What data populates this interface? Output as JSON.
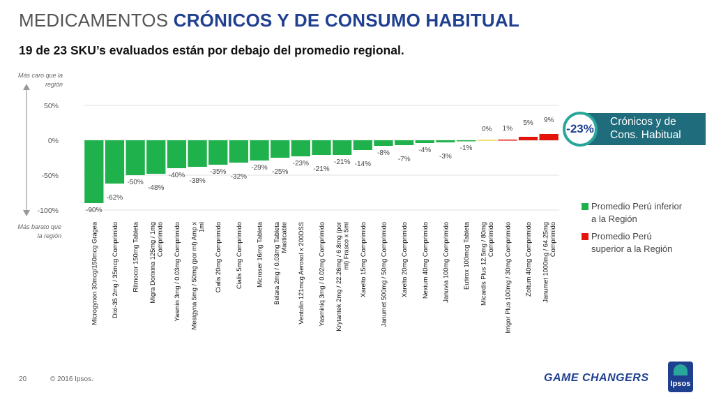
{
  "header": {
    "title_part1": "MEDICAMENTOS",
    "title_part2": "CRÓNICOS Y DE CONSUMO HABITUAL",
    "subtitle": "19 de 23 SKU’s evaluados están por debajo del promedio regional."
  },
  "side_notes": {
    "top": [
      "Más caro que la",
      "región"
    ],
    "bottom": [
      "Más barato que",
      "la región"
    ]
  },
  "callout": {
    "value": "-23%",
    "text_line1": "Crónicos y de",
    "text_line2": "Cons. Habitual"
  },
  "legend": {
    "below": "Promedio Perú inferior a la Región",
    "above": "Promedio Perú superior a la Región"
  },
  "colors": {
    "below": "#1fb14b",
    "above": "#e3150b",
    "accent": "#1f3f8f",
    "callout": "#1f6c7c",
    "ring": "#2aa79b"
  },
  "footer": {
    "page": "20",
    "copyright": "© 2016 Ipsos.",
    "brand": "GAME CHANGERS",
    "logo": "Ipsos"
  },
  "chart_data": {
    "type": "bar",
    "title": "",
    "ylim": [
      -100,
      50
    ],
    "yticks": [
      50,
      0,
      -50,
      -100
    ],
    "ytick_labels": [
      "50%",
      "0%",
      "-50%",
      "-100%"
    ],
    "grid": true,
    "categories": [
      [
        "Microgynon 30mcg/150mcg Gragea"
      ],
      [
        "Dixi-35 2mg / 35mcg Comprimido"
      ],
      [
        "Ritmocor 150mg Tableta"
      ],
      [
        "Migra Dorixina 125mg / 1mg",
        "Comprimido"
      ],
      [
        "Yasmin 3mg / 0.03mg Comprimido"
      ],
      [
        "Mesigyna 5mg / 50mg (por ml) Amp x",
        "1ml"
      ],
      [
        "Cialis 20mg Comprimido"
      ],
      [
        "Cialis 5mg Comprimido"
      ],
      [
        "Microser 16mg Tableta"
      ],
      [
        "Belara 2mg / 0.03mg Tableta",
        "Masticable"
      ],
      [
        "Ventolin 121mcg Aerosol x 200DSS"
      ],
      [
        "Yasminiq 3mg / 0.02mg Comprimido"
      ],
      [
        "Krytantek 2mg / 22.26mg / 6.8mg (por",
        "ml) Frasco x 5ml"
      ],
      [
        "Xarelto 15mg Comprimido"
      ],
      [
        "Janumet 500mg / 50mg Comprimido"
      ],
      [
        "Xarelto 20mg Comprimido"
      ],
      [
        "Nexium 40mg Comprimido"
      ],
      [
        "Januvia 100mg Comprimido"
      ],
      [
        "Eutirox 100mcg Tableta"
      ],
      [
        "Micardis Plus 12.5mg / 80mg",
        "Comprimido"
      ],
      [
        "Irrigor Plus 100mg / 30mg Comprimido"
      ],
      [
        "Zoltum 40mg Comprimido"
      ],
      [
        "Janumet 1000mg / 64.25mg",
        "Comprimido"
      ]
    ],
    "values": [
      -90,
      -62,
      -50,
      -48,
      -40,
      -38,
      -35,
      -32,
      -29,
      -25,
      -23,
      -21,
      -21,
      -14,
      -8,
      -7,
      -4,
      -3,
      -1,
      0,
      1,
      5,
      9
    ],
    "data_labels": [
      "-90%",
      "-62%",
      "-50%",
      "-48%",
      "-40%",
      "-38%",
      "-35%",
      "-32%",
      "-29%",
      "-25%",
      "-23%",
      "-21%",
      "-21%",
      "-14%",
      "-8%",
      "-7%",
      "-4%",
      "-3%",
      "-1%",
      "0%",
      "1%",
      "5%",
      "9%"
    ]
  }
}
